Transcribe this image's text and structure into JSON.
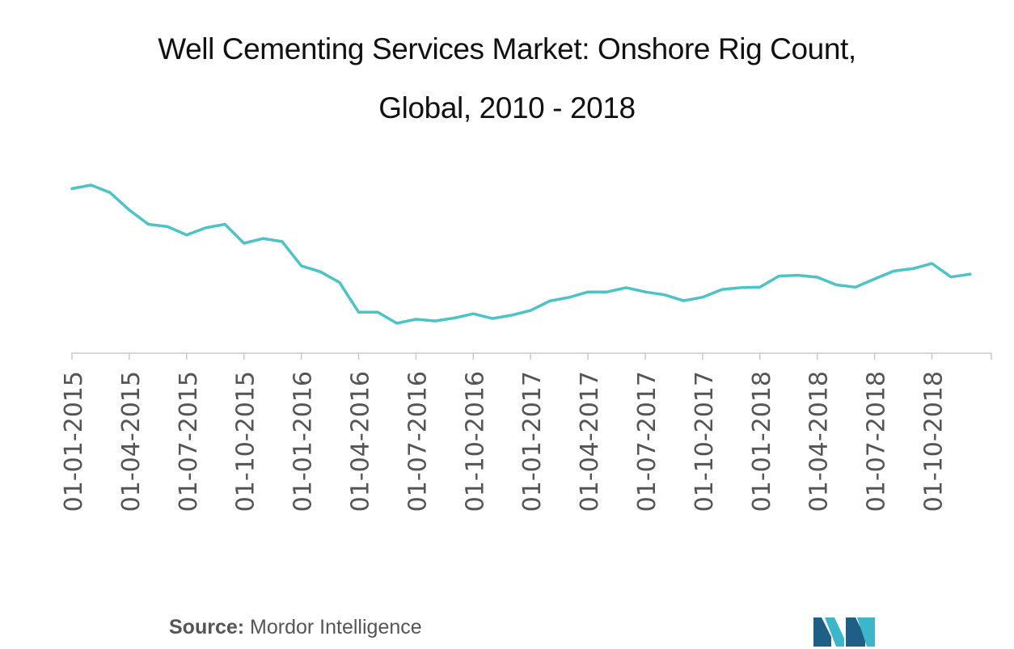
{
  "chart_data": {
    "type": "line",
    "title_line1": "Well Cementing Services Market: Onshore Rig Count,",
    "title_line2": "Global, 2010 - 2018",
    "xlabel": "",
    "ylabel": "",
    "x_ticks": [
      "01-01-2015",
      "01-04-2015",
      "01-07-2015",
      "01-10-2015",
      "01-01-2016",
      "01-04-2016",
      "01-07-2016",
      "01-10-2016",
      "01-01-2017",
      "01-04-2017",
      "01-07-2017",
      "01-10-2017",
      "01-01-2018",
      "01-04-2018",
      "01-07-2018",
      "01-10-2018"
    ],
    "y_axis_visible": false,
    "grid": false,
    "legend": "none",
    "series_color": "#4CC3C6",
    "series": [
      {
        "values": [
          [
            "2015-01-01",
            1085
          ],
          [
            "2015-02-01",
            1100
          ],
          [
            "2015-03-01",
            1068
          ],
          [
            "2015-04-01",
            995
          ],
          [
            "2015-05-01",
            935
          ],
          [
            "2015-06-01",
            925
          ],
          [
            "2015-07-01",
            890
          ],
          [
            "2015-08-01",
            920
          ],
          [
            "2015-09-01",
            935
          ],
          [
            "2015-10-01",
            855
          ],
          [
            "2015-11-01",
            875
          ],
          [
            "2015-12-01",
            862
          ],
          [
            "2016-01-01",
            760
          ],
          [
            "2016-02-01",
            735
          ],
          [
            "2016-03-01",
            690
          ],
          [
            "2016-04-01",
            565
          ],
          [
            "2016-05-01",
            565
          ],
          [
            "2016-06-01",
            518
          ],
          [
            "2016-07-01",
            535
          ],
          [
            "2016-08-01",
            528
          ],
          [
            "2016-09-01",
            540
          ],
          [
            "2016-10-01",
            558
          ],
          [
            "2016-11-01",
            538
          ],
          [
            "2016-12-01",
            552
          ],
          [
            "2017-01-01",
            572
          ],
          [
            "2017-02-01",
            612
          ],
          [
            "2017-03-01",
            627
          ],
          [
            "2017-04-01",
            650
          ],
          [
            "2017-05-01",
            650
          ],
          [
            "2017-06-01",
            668
          ],
          [
            "2017-07-01",
            650
          ],
          [
            "2017-08-01",
            638
          ],
          [
            "2017-09-01",
            613
          ],
          [
            "2017-10-01",
            628
          ],
          [
            "2017-11-01",
            660
          ],
          [
            "2017-12-01",
            668
          ],
          [
            "2018-01-01",
            670
          ],
          [
            "2018-02-01",
            717
          ],
          [
            "2018-03-01",
            720
          ],
          [
            "2018-04-01",
            712
          ],
          [
            "2018-05-01",
            680
          ],
          [
            "2018-06-01",
            670
          ],
          [
            "2018-07-01",
            705
          ],
          [
            "2018-08-01",
            738
          ],
          [
            "2018-09-01",
            748
          ],
          [
            "2018-10-01",
            770
          ],
          [
            "2018-11-01",
            713
          ],
          [
            "2018-12-01",
            725
          ]
        ]
      }
    ]
  },
  "footer": {
    "source_label": "Source:",
    "source_text": " Mordor Intelligence"
  },
  "logo": {
    "colors": [
      "#1F5F86",
      "#3EB6C9"
    ]
  }
}
